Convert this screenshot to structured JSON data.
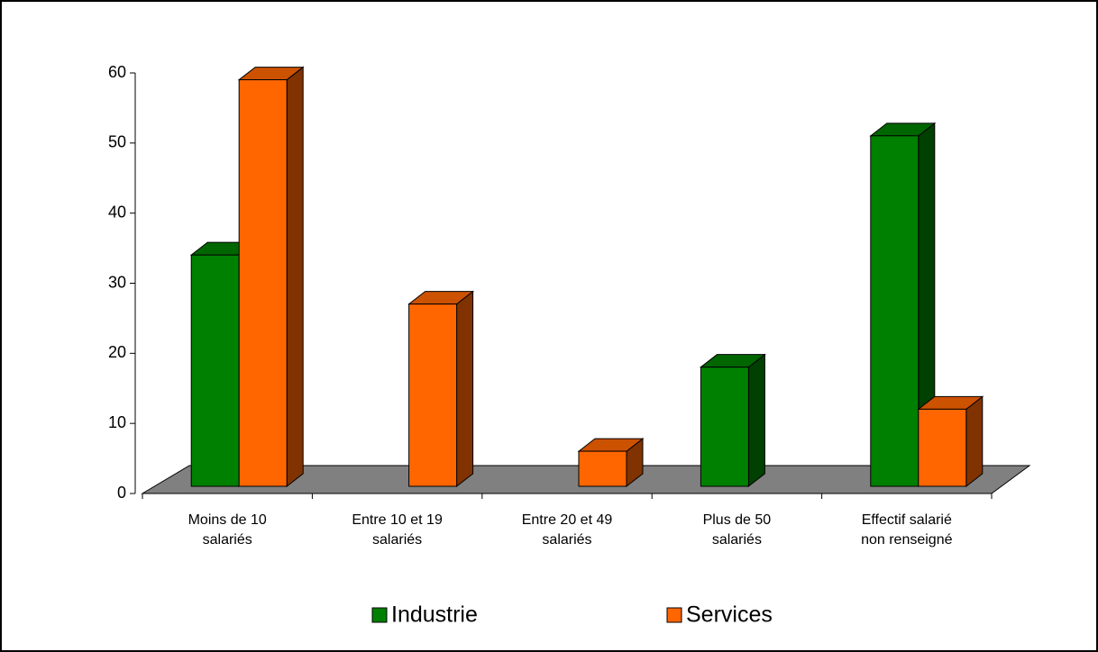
{
  "chart_data": {
    "type": "bar3d",
    "categories": [
      "Moins de 10 salariés",
      "Entre 10 et 19 salariés",
      "Entre 20 et 49 salariés",
      "Plus de 50 salariés",
      "Effectif salarié non renseigné"
    ],
    "series": [
      {
        "name": "Industrie",
        "color": "#008000",
        "values": [
          33,
          0,
          0,
          17,
          50
        ]
      },
      {
        "name": "Services",
        "color": "#ff6600",
        "values": [
          58,
          26,
          5,
          0,
          11
        ]
      }
    ],
    "ylim": [
      0,
      60
    ],
    "yticks": [
      0,
      10,
      20,
      30,
      40,
      50,
      60
    ],
    "legend": "bottom"
  }
}
